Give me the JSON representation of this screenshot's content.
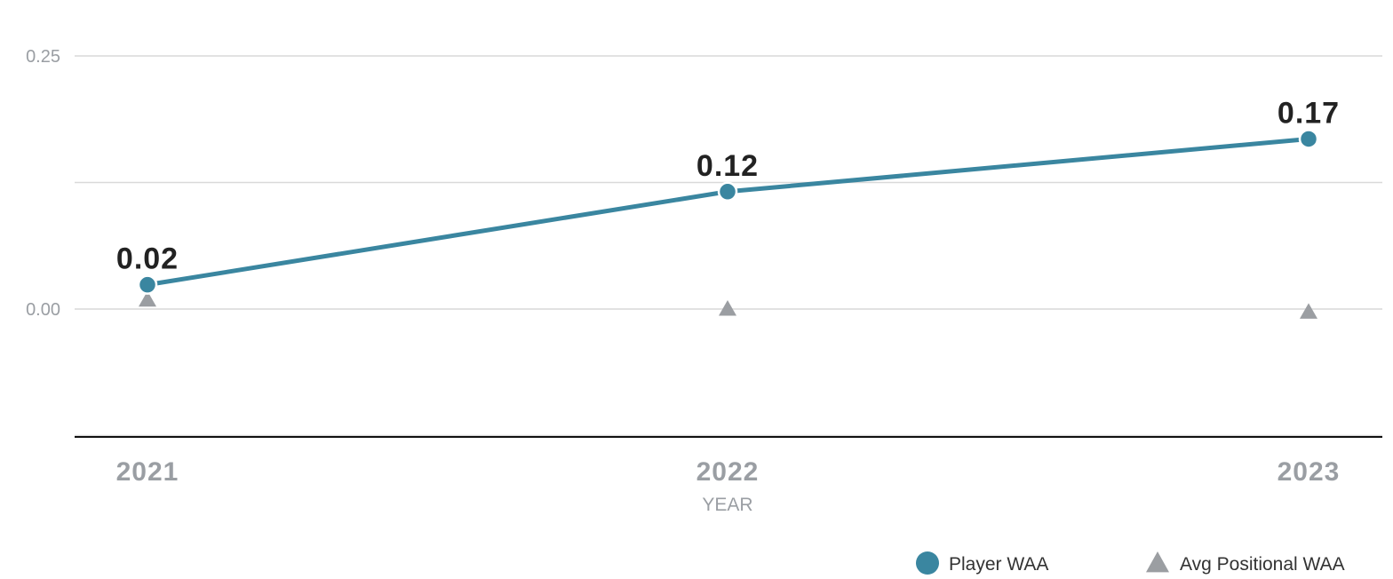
{
  "chart_data": {
    "type": "line",
    "categories": [
      "2021",
      "2022",
      "2023"
    ],
    "xlabel": "YEAR",
    "ylabel": "",
    "ylim": [
      -0.125,
      0.25
    ],
    "yticks": [
      {
        "value": 0.25,
        "label": "0.25"
      },
      {
        "value": 0.0,
        "label": "0.00"
      }
    ],
    "grid": true,
    "legend_position": "bottom-right",
    "series": [
      {
        "name": "Player WAA",
        "marker": "circle",
        "color": "#3a86a0",
        "values": [
          0.024,
          0.116,
          0.168
        ],
        "labels": [
          "0.02",
          "0.12",
          "0.17"
        ]
      },
      {
        "name": "Avg Positional WAA",
        "marker": "triangle",
        "color": "#9b9ea2",
        "values": [
          0.009,
          0.0,
          -0.003
        ]
      }
    ]
  }
}
